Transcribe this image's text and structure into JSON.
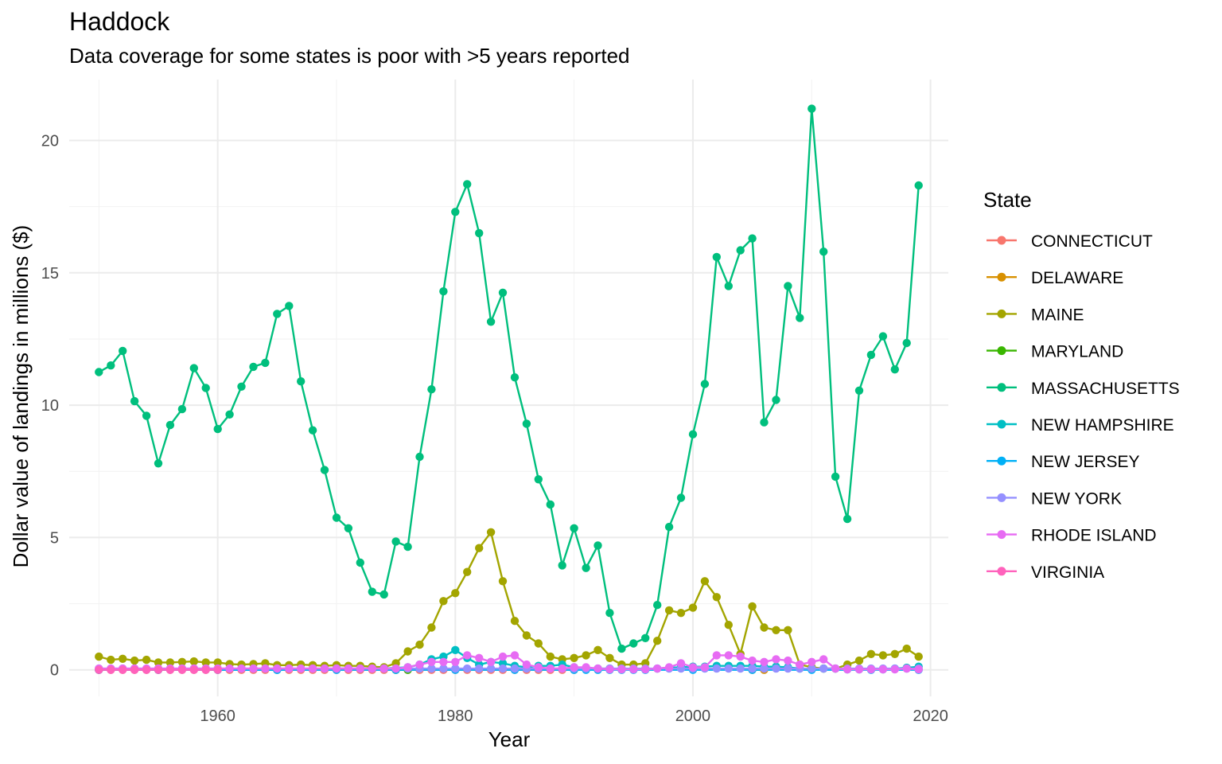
{
  "chart_data": {
    "type": "line",
    "title": "Haddock",
    "subtitle": "Data coverage for some states is poor with >5 years reported",
    "xlabel": "Year",
    "ylabel": "Dollar value of landings in millions ($)",
    "xlim": [
      1947.5,
      2021.5
    ],
    "ylim": [
      -1.0,
      22.3
    ],
    "x_ticks": [
      1960,
      1980,
      2000,
      2020
    ],
    "y_ticks": [
      0,
      5,
      10,
      15,
      20
    ],
    "grid": true,
    "legend": {
      "title": "State",
      "position": "right"
    },
    "series": [
      {
        "name": "CONNECTICUT",
        "color": "#F8766D",
        "x": [
          1950,
          1951,
          1952,
          1953,
          1954,
          1955,
          1956,
          1957,
          1958,
          1959,
          1960,
          1961,
          1962,
          1963,
          1964,
          1965,
          1966,
          1967,
          1968,
          1969,
          1970,
          1971,
          1972,
          1973,
          1974,
          1975,
          1976,
          1977,
          1978,
          1979,
          1980,
          1981,
          1982,
          1983,
          1984,
          1985,
          1986,
          1987,
          1988,
          1989,
          1990
        ],
        "y": [
          0,
          0,
          0,
          0,
          0,
          0,
          0,
          0,
          0,
          0,
          0,
          0,
          0,
          0,
          0,
          0,
          0,
          0,
          0,
          0,
          0,
          0,
          0,
          0,
          0,
          0,
          0,
          0,
          0,
          0,
          0,
          0,
          0,
          0,
          0,
          0,
          0,
          0,
          0,
          0,
          0
        ]
      },
      {
        "name": "DELAWARE",
        "color": "#D89000",
        "x": [
          2005,
          2006
        ],
        "y": [
          0,
          0
        ]
      },
      {
        "name": "MAINE",
        "color": "#A3A500",
        "x": [
          1950,
          1951,
          1952,
          1953,
          1954,
          1955,
          1956,
          1957,
          1958,
          1959,
          1960,
          1961,
          1962,
          1963,
          1964,
          1965,
          1966,
          1967,
          1968,
          1969,
          1970,
          1971,
          1972,
          1973,
          1974,
          1975,
          1976,
          1977,
          1978,
          1979,
          1980,
          1981,
          1982,
          1983,
          1984,
          1985,
          1986,
          1987,
          1988,
          1989,
          1990,
          1991,
          1992,
          1993,
          1994,
          1995,
          1996,
          1997,
          1998,
          1999,
          2000,
          2001,
          2002,
          2003,
          2004,
          2005,
          2006,
          2007,
          2008,
          2009,
          2010,
          2011,
          2012,
          2013,
          2014,
          2015,
          2016,
          2017,
          2018,
          2019
        ],
        "y": [
          0.5,
          0.38,
          0.42,
          0.35,
          0.38,
          0.28,
          0.28,
          0.3,
          0.32,
          0.28,
          0.28,
          0.22,
          0.2,
          0.22,
          0.25,
          0.18,
          0.18,
          0.2,
          0.18,
          0.15,
          0.18,
          0.15,
          0.15,
          0.12,
          0.1,
          0.25,
          0.7,
          0.95,
          1.6,
          2.6,
          2.9,
          3.7,
          4.6,
          5.2,
          3.35,
          1.85,
          1.3,
          1.0,
          0.5,
          0.4,
          0.45,
          0.55,
          0.75,
          0.45,
          0.2,
          0.2,
          0.25,
          1.1,
          2.25,
          2.15,
          2.35,
          3.35,
          2.75,
          1.7,
          0.6,
          2.4,
          1.6,
          1.5,
          1.5,
          0.2,
          0.1,
          0.05,
          0.05,
          0.2,
          0.35,
          0.6,
          0.55,
          0.6,
          0.8,
          0.5
        ]
      },
      {
        "name": "MARYLAND",
        "color": "#39B600",
        "x": [
          1975,
          1976
        ],
        "y": [
          0,
          0
        ]
      },
      {
        "name": "MASSACHUSETTS",
        "color": "#00BF7D",
        "x": [
          1950,
          1951,
          1952,
          1953,
          1954,
          1955,
          1956,
          1957,
          1958,
          1959,
          1960,
          1961,
          1962,
          1963,
          1964,
          1965,
          1966,
          1967,
          1968,
          1969,
          1970,
          1971,
          1972,
          1973,
          1974,
          1975,
          1976,
          1977,
          1978,
          1979,
          1980,
          1981,
          1982,
          1983,
          1984,
          1985,
          1986,
          1987,
          1988,
          1989,
          1990,
          1991,
          1992,
          1993,
          1994,
          1995,
          1996,
          1997,
          1998,
          1999,
          2000,
          2001,
          2002,
          2003,
          2004,
          2005,
          2006,
          2007,
          2008,
          2009,
          2010,
          2011,
          2012,
          2013,
          2014,
          2015,
          2016,
          2017,
          2018,
          2019
        ],
        "y": [
          11.25,
          11.5,
          12.05,
          10.15,
          9.6,
          7.8,
          9.25,
          9.85,
          11.4,
          10.65,
          9.1,
          9.65,
          10.7,
          11.45,
          11.6,
          13.45,
          13.75,
          10.9,
          9.05,
          7.55,
          5.75,
          5.35,
          4.05,
          2.95,
          2.85,
          4.85,
          4.65,
          8.05,
          10.6,
          14.3,
          17.3,
          18.35,
          16.5,
          13.15,
          14.25,
          11.05,
          9.3,
          7.2,
          6.25,
          3.95,
          5.35,
          3.85,
          4.7,
          2.15,
          0.8,
          1.0,
          1.2,
          2.45,
          5.4,
          6.5,
          8.9,
          10.8,
          15.6,
          14.5,
          15.85,
          16.3,
          9.35,
          10.2,
          14.5,
          13.3,
          21.2,
          15.8,
          7.3,
          5.7,
          10.55,
          11.9,
          12.6,
          11.35,
          12.35,
          18.3
        ]
      },
      {
        "name": "NEW HAMPSHIRE",
        "color": "#00BFC4",
        "x": [
          1950,
          1955,
          1960,
          1965,
          1970,
          1972,
          1974,
          1976,
          1977,
          1978,
          1979,
          1980,
          1981,
          1982,
          1983,
          1984,
          1985,
          1986,
          1987,
          1988,
          1989,
          1990,
          1991,
          1992,
          1993,
          1994,
          1995,
          1996,
          1997,
          1998,
          1999,
          2000,
          2001,
          2002,
          2003,
          2004,
          2005,
          2006,
          2007,
          2008,
          2009,
          2010,
          2011,
          2012,
          2013,
          2014,
          2015,
          2016,
          2017,
          2018,
          2019
        ],
        "y": [
          0,
          0,
          0,
          0,
          0.05,
          0.05,
          0.05,
          0.1,
          0.2,
          0.4,
          0.5,
          0.75,
          0.45,
          0.2,
          0.3,
          0.25,
          0.15,
          0.1,
          0.15,
          0.15,
          0.2,
          0.1,
          0.05,
          0.05,
          0.05,
          0.02,
          0.02,
          0.02,
          0.05,
          0.08,
          0.1,
          0.12,
          0.12,
          0.15,
          0.15,
          0.15,
          0.15,
          0.12,
          0.12,
          0.1,
          0.05,
          0.02,
          0.05,
          0.05,
          0.02,
          0.02,
          0.02,
          0.02,
          0.05,
          0.08,
          0.12
        ]
      },
      {
        "name": "NEW JERSEY",
        "color": "#00B0F6",
        "x": [
          1950,
          1955,
          1960,
          1965,
          1970,
          1975,
          1980,
          1985,
          1990,
          1991,
          1992,
          1993,
          1994,
          1995,
          1996,
          2000,
          2005,
          2010,
          2015,
          2019
        ],
        "y": [
          0,
          0,
          0,
          0,
          0,
          0,
          0,
          0,
          0,
          0,
          0,
          0,
          0,
          0,
          0,
          0,
          0,
          0,
          0,
          0
        ]
      },
      {
        "name": "NEW YORK",
        "color": "#9590FF",
        "x": [
          1950,
          1951,
          1952,
          1953,
          1954,
          1955,
          1956,
          1957,
          1958,
          1959,
          1960,
          1961,
          1962,
          1963,
          1964,
          1965,
          1966,
          1967,
          1968,
          1969,
          1970,
          1971,
          1972,
          1973,
          1974,
          1975,
          1976,
          1977,
          1978,
          1979,
          1980,
          1981,
          1982,
          1983,
          1984,
          1985,
          1986,
          1987,
          1988,
          1989,
          1990,
          1991,
          1992,
          1993,
          1994,
          1995,
          1996,
          1997,
          1998,
          1999,
          2000,
          2001,
          2002,
          2003,
          2004,
          2005,
          2006,
          2007,
          2008,
          2009,
          2010,
          2011,
          2012,
          2013,
          2014,
          2015,
          2016,
          2017,
          2018,
          2019
        ],
        "y": [
          0.05,
          0.05,
          0.05,
          0.05,
          0.05,
          0.05,
          0.05,
          0.05,
          0.05,
          0.05,
          0.05,
          0.05,
          0.05,
          0.05,
          0.05,
          0.05,
          0.05,
          0.05,
          0.05,
          0.05,
          0.05,
          0.05,
          0.05,
          0.05,
          0.05,
          0.05,
          0.05,
          0.05,
          0.05,
          0.05,
          0.05,
          0.05,
          0.05,
          0.05,
          0.05,
          0.05,
          0.05,
          0.05,
          0.05,
          0.05,
          0.05,
          0.05,
          0.05,
          0.05,
          0.05,
          0.05,
          0.05,
          0.05,
          0.05,
          0.05,
          0.05,
          0.05,
          0.05,
          0.05,
          0.05,
          0.05,
          0.05,
          0.05,
          0.05,
          0.05,
          0.05,
          0.05,
          0.05,
          0.05,
          0.05,
          0.05,
          0.05,
          0.05,
          0.05,
          0.05
        ]
      },
      {
        "name": "RHODE ISLAND",
        "color": "#E76BF3",
        "x": [
          1950,
          1951,
          1952,
          1953,
          1954,
          1955,
          1956,
          1957,
          1958,
          1959,
          1960,
          1961,
          1962,
          1963,
          1964,
          1965,
          1966,
          1967,
          1968,
          1969,
          1970,
          1971,
          1972,
          1973,
          1974,
          1975,
          1976,
          1977,
          1978,
          1979,
          1980,
          1981,
          1982,
          1983,
          1984,
          1985,
          1986,
          1987,
          1988,
          1989,
          1990,
          1991,
          1992,
          1993,
          1994,
          1995,
          1996,
          1997,
          1998,
          1999,
          2000,
          2001,
          2002,
          2003,
          2004,
          2005,
          2006,
          2007,
          2008,
          2009,
          2010,
          2011,
          2012,
          2013,
          2014,
          2015,
          2016,
          2017,
          2018,
          2019
        ],
        "y": [
          0.05,
          0.05,
          0.05,
          0.05,
          0.05,
          0.05,
          0.05,
          0.05,
          0.05,
          0.05,
          0.05,
          0.05,
          0.05,
          0.05,
          0.05,
          0.05,
          0.05,
          0.05,
          0.05,
          0.05,
          0.05,
          0.05,
          0.05,
          0.05,
          0.05,
          0.05,
          0.1,
          0.2,
          0.3,
          0.3,
          0.3,
          0.55,
          0.45,
          0.3,
          0.5,
          0.55,
          0.2,
          0.1,
          0.05,
          0.05,
          0.1,
          0.1,
          0.05,
          0.02,
          0.02,
          0.02,
          0.02,
          0.05,
          0.1,
          0.25,
          0.1,
          0.1,
          0.55,
          0.55,
          0.5,
          0.35,
          0.3,
          0.4,
          0.35,
          0.2,
          0.3,
          0.4,
          0.05,
          0.02,
          0.02,
          0.02,
          0.02,
          0.02,
          0.05,
          0.02
        ]
      },
      {
        "name": "VIRGINIA",
        "color": "#FF62BC",
        "x": [
          1950,
          1951,
          1952,
          1953,
          1954,
          1955,
          1956,
          1957,
          1958,
          1959,
          1960
        ],
        "y": [
          0,
          0,
          0,
          0,
          0,
          0,
          0,
          0,
          0,
          0,
          0
        ]
      }
    ]
  }
}
